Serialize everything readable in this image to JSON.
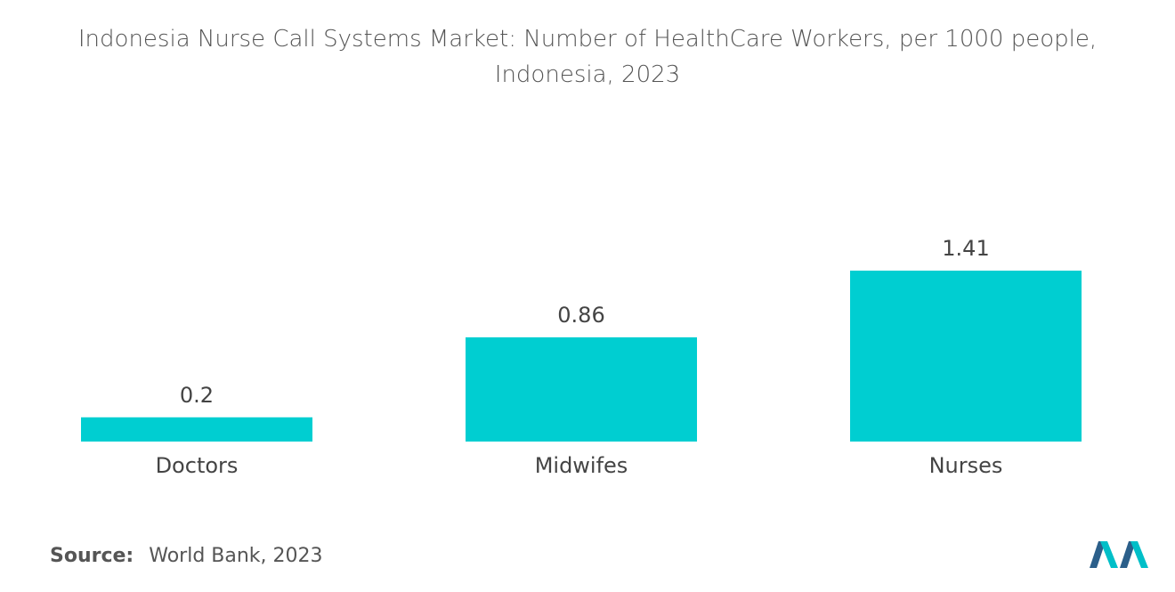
{
  "title_line1": "Indonesia Nurse Call Systems Market: Number of HealthCare Workers, per 1000 people,",
  "title_line2": "Indonesia, 2023",
  "source_label": "Source:",
  "source_text": "World Bank, 2023",
  "colors": {
    "bar": "#00CED1",
    "text": "#444444",
    "logo_dark": "#2B5F8A",
    "logo_light": "#00BFC8"
  },
  "chart_data": {
    "type": "bar",
    "categories": [
      "Doctors",
      "Midwifes",
      "Nurses"
    ],
    "values": [
      0.2,
      0.86,
      1.41
    ],
    "data_labels": [
      "0.2",
      "0.86",
      "1.41"
    ],
    "title": "Indonesia Nurse Call Systems Market: Number of HealthCare Workers, per 1000 people, Indonesia, 2023",
    "xlabel": "",
    "ylabel": "",
    "ylim": [
      0,
      1.41
    ],
    "grid": false,
    "legend": "none"
  }
}
